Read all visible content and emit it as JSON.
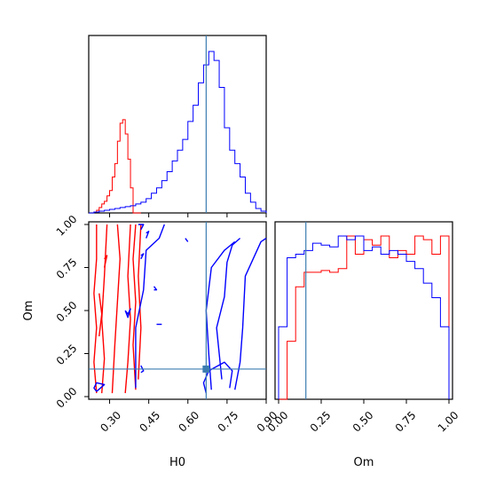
{
  "chart_data": {
    "type": "corner",
    "parameters": [
      "H0",
      "Om"
    ],
    "truth": {
      "H0": 0.67,
      "Om": 0.16
    },
    "colors": {
      "red": "#ff0000",
      "blue": "#0000ff",
      "truth": "#3b7cb0"
    },
    "panels": {
      "H0_hist": {
        "xlim": [
          0.22,
          0.9
        ],
        "bin_edges": [
          0.3,
          0.31,
          0.32,
          0.33,
          0.34,
          0.35,
          0.36,
          0.37,
          0.38,
          0.39,
          0.4,
          0.41,
          0.42,
          0.43,
          0.44,
          0.45,
          0.46,
          0.47,
          0.48,
          0.49,
          0.5,
          0.51,
          0.52,
          0.53,
          0.54,
          0.55,
          0.56,
          0.57,
          0.58,
          0.59,
          0.6,
          0.61,
          0.62,
          0.63,
          0.64,
          0.65,
          0.66,
          0.67,
          0.68,
          0.69,
          0.7,
          0.71,
          0.72,
          0.73,
          0.74,
          0.75,
          0.76,
          0.77,
          0.78,
          0.79,
          0.8,
          0.81,
          0.82,
          0.83,
          0.84,
          0.85,
          0.86,
          0.87,
          0.88,
          0.89,
          0.9
        ],
        "series": [
          {
            "name": "red",
            "edges": [
              0.22,
              0.23,
              0.24,
              0.25,
              0.26,
              0.27,
              0.28,
              0.29,
              0.3,
              0.31,
              0.32,
              0.33,
              0.34,
              0.35,
              0.36,
              0.37,
              0.38,
              0.39,
              0.4,
              0.41,
              0.42
            ],
            "values": [
              0,
              0,
              1,
              3,
              6,
              10,
              13,
              19,
              25,
              40,
              55,
              80,
              100,
              104,
              88,
              60,
              28,
              0,
              0,
              0
            ]
          },
          {
            "name": "blue",
            "edges": [
              0.22,
              0.24,
              0.26,
              0.28,
              0.3,
              0.32,
              0.34,
              0.36,
              0.38,
              0.4,
              0.42,
              0.44,
              0.46,
              0.48,
              0.5,
              0.52,
              0.54,
              0.56,
              0.58,
              0.6,
              0.62,
              0.64,
              0.66,
              0.68,
              0.7,
              0.72,
              0.74,
              0.76,
              0.78,
              0.8,
              0.82,
              0.84,
              0.86,
              0.88,
              0.9
            ],
            "values": [
              0,
              1,
              2,
              3,
              4,
              5,
              6,
              7,
              8,
              10,
              12,
              16,
              22,
              28,
              36,
              46,
              58,
              70,
              82,
              102,
              120,
              145,
              165,
              180,
              170,
              140,
              95,
              70,
              55,
              40,
              22,
              12,
              5,
              2
            ]
          }
        ]
      },
      "Om_hist": {
        "xlim": [
          0.0,
          1.0
        ],
        "xticks": [
          "0.00",
          "0.25",
          "0.50",
          "0.75",
          "1.00"
        ],
        "series": [
          {
            "name": "red",
            "edges": [
              0.0,
              0.05,
              0.1,
              0.15,
              0.2,
              0.25,
              0.3,
              0.35,
              0.4,
              0.45,
              0.5,
              0.55,
              0.6,
              0.65,
              0.7,
              0.75,
              0.8,
              0.85,
              0.9,
              0.95,
              1.0
            ],
            "values": [
              0,
              32,
              62,
              70,
              70,
              71,
              70,
              72,
              90,
              80,
              88,
              85,
              90,
              78,
              82,
              80,
              90,
              88,
              80,
              90
            ]
          },
          {
            "name": "blue",
            "edges": [
              0.0,
              0.05,
              0.1,
              0.15,
              0.2,
              0.25,
              0.3,
              0.35,
              0.4,
              0.45,
              0.5,
              0.55,
              0.6,
              0.65,
              0.7,
              0.75,
              0.8,
              0.85,
              0.9,
              0.95,
              1.0
            ],
            "values": [
              40,
              78,
              80,
              82,
              86,
              85,
              84,
              90,
              88,
              90,
              82,
              84,
              80,
              82,
              80,
              76,
              72,
              64,
              56,
              40
            ]
          }
        ]
      },
      "H0_Om_2d": {
        "xlim": [
          0.22,
          0.9
        ],
        "ylim": [
          0.0,
          1.0
        ],
        "xticks": [
          "0.30",
          "0.45",
          "0.60",
          "0.75",
          "0.90"
        ],
        "yticks": [
          "0.00",
          "0.25",
          "0.50",
          "0.75",
          "1.00"
        ],
        "xlabel": "H0",
        "ylabel": "Om",
        "contours": [
          {
            "color": "red",
            "points": [
              [
                0.27,
                0.02
              ],
              [
                0.28,
                0.22
              ],
              [
                0.27,
                0.45
              ],
              [
                0.28,
                0.7
              ],
              [
                0.29,
                1.0
              ]
            ]
          },
          {
            "color": "red",
            "points": [
              [
                0.25,
                0.02
              ],
              [
                0.24,
                0.2
              ],
              [
                0.25,
                0.4
              ],
              [
                0.24,
                0.6
              ],
              [
                0.25,
                0.8
              ],
              [
                0.25,
                1.0
              ]
            ]
          },
          {
            "color": "red",
            "points": [
              [
                0.31,
                0.02
              ],
              [
                0.32,
                0.3
              ],
              [
                0.33,
                0.55
              ],
              [
                0.34,
                0.8
              ],
              [
                0.33,
                1.0
              ]
            ]
          },
          {
            "color": "red",
            "points": [
              [
                0.36,
                0.02
              ],
              [
                0.37,
                0.2
              ],
              [
                0.38,
                0.45
              ],
              [
                0.37,
                0.7
              ],
              [
                0.38,
                1.0
              ]
            ]
          },
          {
            "color": "red",
            "points": [
              [
                0.4,
                0.04
              ],
              [
                0.39,
                0.3
              ],
              [
                0.4,
                0.55
              ],
              [
                0.39,
                0.8
              ],
              [
                0.4,
                1.0
              ]
            ]
          },
          {
            "color": "red",
            "points": [
              [
                0.41,
                0.1
              ],
              [
                0.42,
                0.4
              ],
              [
                0.41,
                0.7
              ],
              [
                0.42,
                1.0
              ]
            ]
          },
          {
            "color": "red",
            "points": [
              [
                0.26,
                0.35
              ],
              [
                0.27,
                0.48
              ],
              [
                0.26,
                0.6
              ]
            ]
          },
          {
            "color": "red",
            "points": [
              [
                0.28,
                0.75
              ],
              [
                0.29,
                0.82
              ],
              [
                0.28,
                0.8
              ]
            ]
          },
          {
            "color": "blue",
            "points": [
              [
                0.25,
                0.03
              ],
              [
                0.28,
                0.07
              ],
              [
                0.25,
                0.08
              ],
              [
                0.24,
                0.05
              ],
              [
                0.25,
                0.03
              ]
            ]
          },
          {
            "color": "blue",
            "points": [
              [
                0.42,
                0.97
              ],
              [
                0.43,
                1.0
              ],
              [
                0.41,
                1.0
              ]
            ]
          },
          {
            "color": "blue",
            "points": [
              [
                0.44,
                0.92
              ],
              [
                0.45,
                0.96
              ],
              [
                0.44,
                0.95
              ]
            ]
          },
          {
            "color": "blue",
            "points": [
              [
                0.42,
                0.8
              ],
              [
                0.43,
                0.83
              ],
              [
                0.42,
                0.82
              ]
            ]
          },
          {
            "color": "blue",
            "points": [
              [
                0.36,
                0.5
              ],
              [
                0.37,
                0.48
              ],
              [
                0.38,
                0.51
              ],
              [
                0.37,
                0.46
              ],
              [
                0.36,
                0.5
              ]
            ]
          },
          {
            "color": "blue",
            "points": [
              [
                0.47,
                0.64
              ],
              [
                0.48,
                0.62
              ],
              [
                0.47,
                0.62
              ]
            ]
          },
          {
            "color": "blue",
            "points": [
              [
                0.4,
                0.05
              ],
              [
                0.4,
                0.4
              ],
              [
                0.43,
                0.62
              ],
              [
                0.44,
                0.85
              ],
              [
                0.49,
                0.92
              ],
              [
                0.51,
                1.0
              ]
            ]
          },
          {
            "color": "blue",
            "points": [
              [
                0.42,
                0.18
              ],
              [
                0.43,
                0.15
              ],
              [
                0.42,
                0.14
              ]
            ]
          },
          {
            "color": "blue",
            "points": [
              [
                0.48,
                0.42
              ],
              [
                0.5,
                0.42
              ]
            ]
          },
          {
            "color": "blue",
            "points": [
              [
                0.59,
                0.92
              ],
              [
                0.6,
                0.9
              ]
            ]
          },
          {
            "color": "blue",
            "points": [
              [
                0.73,
                0.1
              ],
              [
                0.71,
                0.4
              ],
              [
                0.74,
                0.58
              ],
              [
                0.75,
                0.78
              ],
              [
                0.77,
                0.88
              ],
              [
                0.8,
                0.92
              ]
            ]
          },
          {
            "color": "blue",
            "points": [
              [
                0.69,
                0.04
              ],
              [
                0.68,
                0.25
              ],
              [
                0.67,
                0.5
              ],
              [
                0.69,
                0.75
              ],
              [
                0.74,
                0.85
              ],
              [
                0.78,
                0.9
              ]
            ]
          },
          {
            "color": "blue",
            "points": [
              [
                0.78,
                0.04
              ],
              [
                0.8,
                0.2
              ],
              [
                0.81,
                0.4
              ],
              [
                0.82,
                0.7
              ],
              [
                0.88,
                0.9
              ],
              [
                0.9,
                0.92
              ]
            ]
          },
          {
            "color": "blue",
            "points": [
              [
                0.67,
                0.02
              ],
              [
                0.66,
                0.08
              ],
              [
                0.68,
                0.15
              ],
              [
                0.74,
                0.2
              ],
              [
                0.77,
                0.15
              ],
              [
                0.76,
                0.05
              ]
            ]
          }
        ]
      }
    }
  }
}
